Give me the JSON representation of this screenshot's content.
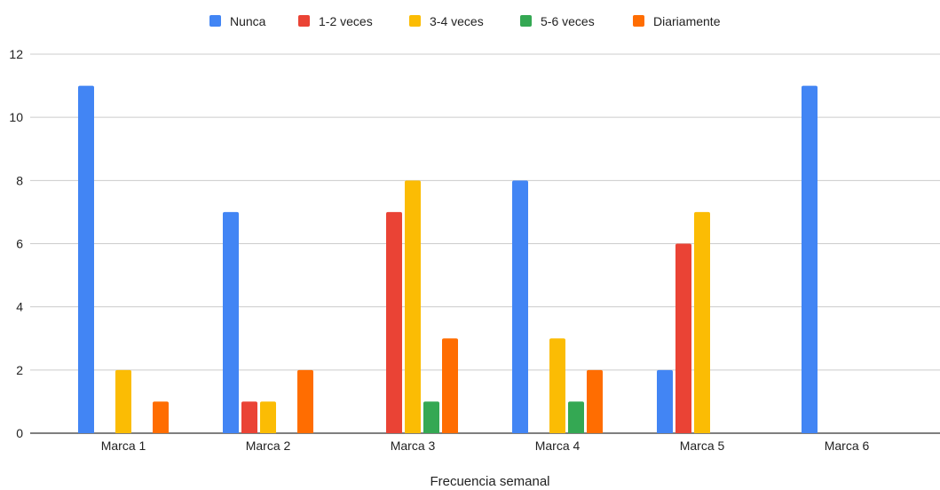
{
  "chart_data": {
    "type": "bar",
    "title": "",
    "xlabel": "Frecuencia semanal",
    "ylabel": "",
    "ylim": [
      0,
      12
    ],
    "yticks": [
      "0",
      "2",
      "4",
      "6",
      "8",
      "10",
      "12"
    ],
    "grid": true,
    "legend_position": "top",
    "categories": [
      "Marca 1",
      "Marca 2",
      "Marca 3",
      "Marca 4",
      "Marca 5",
      "Marca 6"
    ],
    "series": [
      {
        "name": "Nunca",
        "color": "#4285f4",
        "values": [
          11,
          7,
          0,
          8,
          2,
          11
        ]
      },
      {
        "name": "1-2 veces",
        "color": "#ea4335",
        "values": [
          0,
          1,
          7,
          0,
          6,
          0
        ]
      },
      {
        "name": "3-4 veces",
        "color": "#fbbc04",
        "values": [
          2,
          1,
          8,
          3,
          7,
          0
        ]
      },
      {
        "name": "5-6 veces",
        "color": "#34a853",
        "values": [
          0,
          0,
          1,
          1,
          0,
          0
        ]
      },
      {
        "name": "Diariamente",
        "color": "#ff6d01",
        "values": [
          1,
          2,
          3,
          2,
          0,
          0
        ]
      }
    ]
  }
}
